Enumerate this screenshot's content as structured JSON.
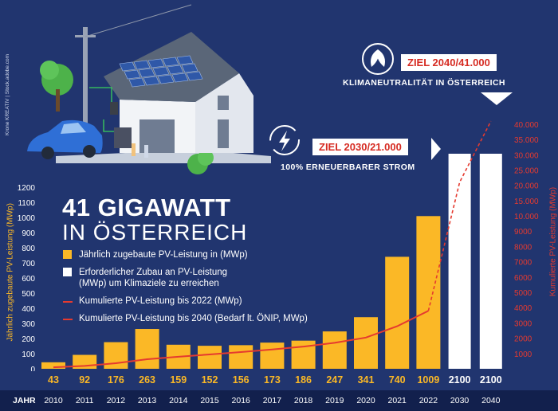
{
  "chart_data": {
    "type": "bar",
    "title": "41 GIGAWATT",
    "subtitle": "IN ÖSTERREICH",
    "xlabel": "JAHR",
    "ylabel": "Jährlich zugebaute PV-Leistung (MWp)",
    "y2label": "Kumulierte PV-Leistung (MWp)",
    "ylim": [
      0,
      1200
    ],
    "y2lim": [
      0,
      40000
    ],
    "yticks": [
      "0",
      "100",
      "200",
      "300",
      "400",
      "500",
      "600",
      "700",
      "800",
      "900",
      "1000",
      "1100",
      "1200"
    ],
    "y2ticks": [
      "1000",
      "2000",
      "3000",
      "4000",
      "5000",
      "6000",
      "7000",
      "8000",
      "9000",
      "10.000",
      "15.000",
      "20.000",
      "25.000",
      "30.000",
      "35.000",
      "40.000"
    ],
    "categories": [
      "2010",
      "2011",
      "2012",
      "2013",
      "2014",
      "2015",
      "2016",
      "2017",
      "2018",
      "2019",
      "2020",
      "2021",
      "2022",
      "2030",
      "2040"
    ],
    "series": [
      {
        "name": "Jährlich zugebaute PV-Leistung in (MWp)",
        "values": [
          43,
          92,
          176,
          263,
          159,
          152,
          156,
          173,
          186,
          247,
          341,
          740,
          1009,
          null,
          null
        ],
        "color": "#fbb826"
      },
      {
        "name": "Erforderlicher Zubau an PV-Leistung (MWp) um Klimaziele zu erreichen",
        "values": [
          null,
          null,
          null,
          null,
          null,
          null,
          null,
          null,
          null,
          null,
          null,
          null,
          null,
          2100,
          2100
        ],
        "color": "#ffffff"
      },
      {
        "name": "Kumulierte PV-Leistung bis 2022 (MWp)",
        "values": [
          95,
          187,
          363,
          626,
          785,
          937,
          1093,
          1266,
          1452,
          1699,
          2040,
          2780,
          3790,
          null,
          null
        ],
        "color": "#e53a2f"
      },
      {
        "name": "Kumulierte PV-Leistung bis 2040 (Bedarf lt. ÖNIP, MWp)",
        "values": [
          null,
          null,
          null,
          null,
          null,
          null,
          null,
          null,
          null,
          null,
          null,
          null,
          3790,
          21000,
          41000
        ],
        "color": "#e53a2f"
      }
    ],
    "value_labels": [
      "43",
      "92",
      "176",
      "263",
      "159",
      "152",
      "156",
      "173",
      "186",
      "247",
      "341",
      "740",
      "1009",
      "2100",
      "2100"
    ],
    "legend_position": "left"
  },
  "title_line1": "41 GIGAWATT",
  "title_line2": "IN ÖSTERREICH",
  "legend": [
    {
      "label": "Jährlich zugebaute PV-Leistung in (MWp)",
      "kind": "box",
      "color": "#fbb826"
    },
    {
      "label": "Erforderlicher Zubau an PV-Leistung (MWp) um Klimaziele zu erreichen",
      "kind": "box",
      "color": "#ffffff"
    },
    {
      "label": "Kumulierte PV-Leistung bis 2022 (MWp)",
      "kind": "solid",
      "color": "#e53a2f"
    },
    {
      "label": "Kumulierte PV-Leistung bis 2040 (Bedarf lt. ÖNIP, MWp)",
      "kind": "dashed",
      "color": "#e53a2f"
    }
  ],
  "goal_2040": {
    "label": "ZIEL 2040/41.000",
    "sub": "KLIMANEUTRALITÄT IN ÖSTERREICH"
  },
  "goal_2030": {
    "label": "ZIEL 2030/21.000",
    "sub": "100% ERNEUERBARER STROM"
  },
  "credit": "Krone KREATIV | Stock.adobe.com",
  "colors": {
    "background": "#21356f",
    "yellow": "#fbb826",
    "red": "#e53a2f",
    "white": "#ffffff",
    "axisbar": "#12204d"
  }
}
